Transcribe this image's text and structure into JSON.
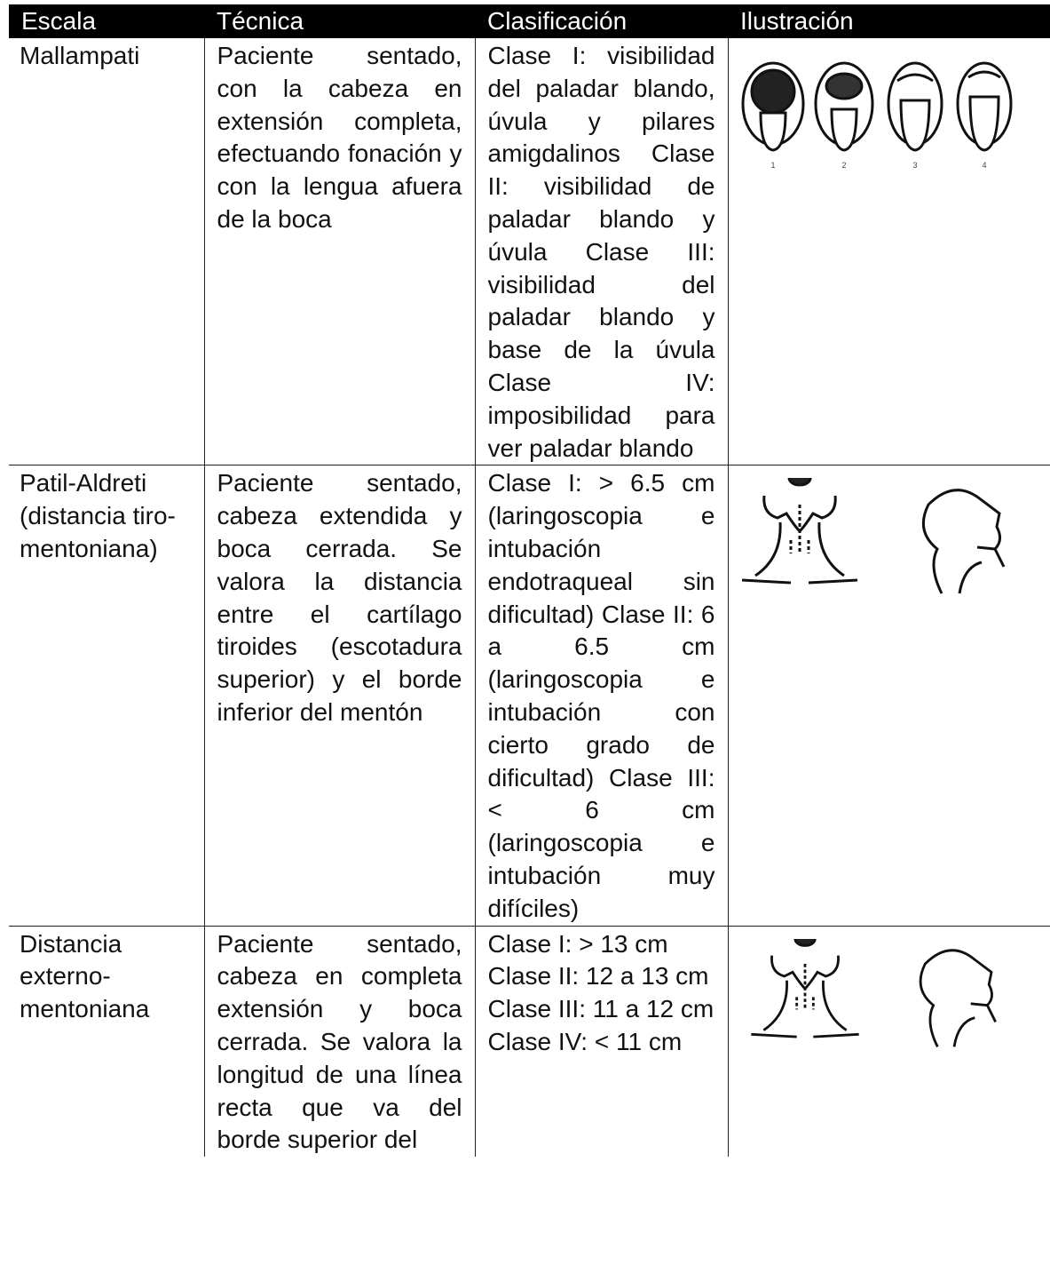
{
  "table": {
    "header": [
      "Escala",
      "Técnica",
      "Clasificación",
      "Ilustración"
    ],
    "rows": [
      [
        "Mallampati",
        "Paciente sentado, con la cabeza en extensión completa, efectuando fonación y con la lengua afuera de la boca",
        [
          "Clase I: visibilidad del paladar blando, úvula y pilares amigdalinos Clase II: visibilidad de paladar blando y úvula Clase III: visibilidad del paladar blando y base de la úvula Clase IV: imposibilidad para ver paladar blando"
        ]
      ],
      [
        "Patil-Aldreti (distancia tiro-mentoniana)",
        "Paciente sentado, cabeza extendida y boca cerrada. Se valora la distancia entre el cartílago tiroides (escotadura superior) y el borde inferior del mentón",
        [
          "Clase I: > 6.5 cm (laringoscopia e intubación endotraqueal sin dificultad) Clase II: 6 a 6.5 cm (laringoscopia e intubación con cierto grado de dificultad) Clase III: < 6 cm (laringoscopia e intubación muy difíciles)"
        ]
      ],
      [
        "Distancia externo-mentoniana",
        "Paciente sentado, cabeza en completa extensión y boca cerrada. Se valora la longitud de una línea recta que va del borde superior del",
        [
          "Clase I: > 13 cm",
          "Clase II: 12 a 13 cm",
          "Clase III: 11 a 12 cm",
          "Clase IV: < 11 cm"
        ]
      ]
    ],
    "mallampati_labels": [
      "1",
      "2",
      "3",
      "4"
    ]
  }
}
